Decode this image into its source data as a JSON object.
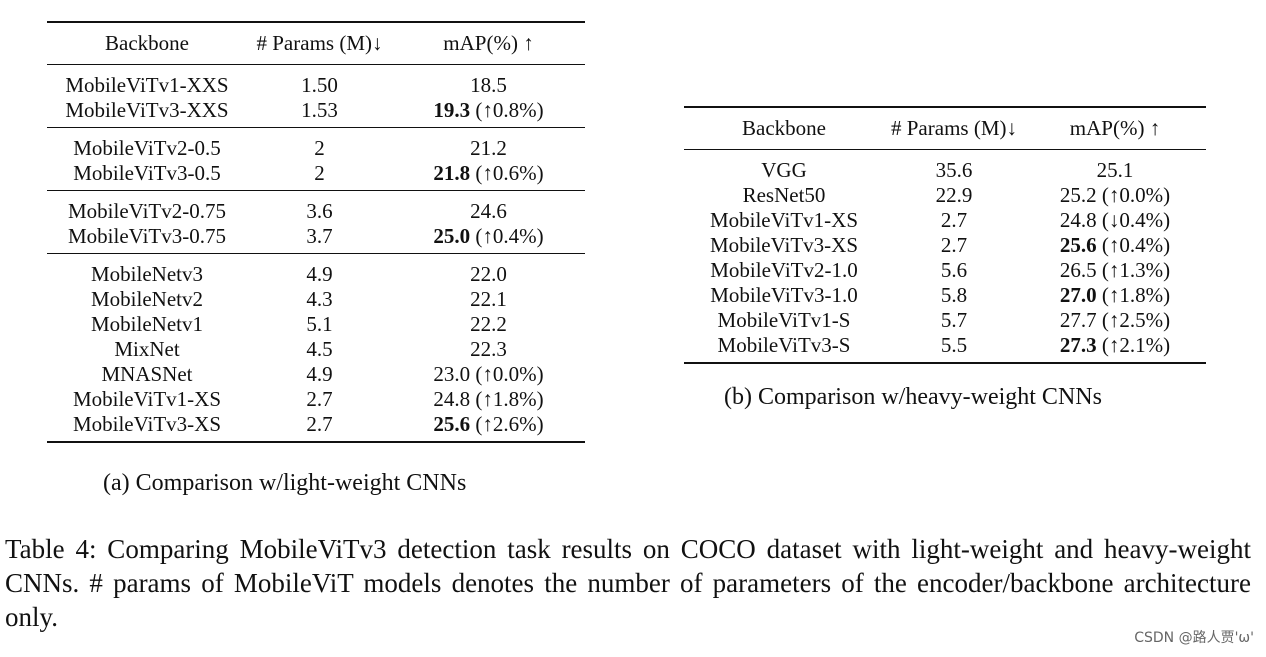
{
  "table_a": {
    "headers": [
      "Backbone",
      "# Params (M)↓",
      "mAP(%) ↑"
    ],
    "groups": [
      [
        {
          "backbone": "MobileViTv1-XXS",
          "params": "1.50",
          "map": "18.5",
          "delta": "",
          "bold": false
        },
        {
          "backbone": "MobileViTv3-XXS",
          "params": "1.53",
          "map": "19.3",
          "delta": " (↑0.8%)",
          "bold": true
        }
      ],
      [
        {
          "backbone": "MobileViTv2-0.5",
          "params": "2",
          "map": "21.2",
          "delta": "",
          "bold": false
        },
        {
          "backbone": "MobileViTv3-0.5",
          "params": "2",
          "map": "21.8",
          "delta": " (↑0.6%)",
          "bold": true
        }
      ],
      [
        {
          "backbone": "MobileViTv2-0.75",
          "params": "3.6",
          "map": "24.6",
          "delta": "",
          "bold": false
        },
        {
          "backbone": "MobileViTv3-0.75",
          "params": "3.7",
          "map": "25.0",
          "delta": " (↑0.4%)",
          "bold": true
        }
      ],
      [
        {
          "backbone": "MobileNetv3",
          "params": "4.9",
          "map": "22.0",
          "delta": "",
          "bold": false
        },
        {
          "backbone": "MobileNetv2",
          "params": "4.3",
          "map": "22.1",
          "delta": "",
          "bold": false
        },
        {
          "backbone": "MobileNetv1",
          "params": "5.1",
          "map": "22.2",
          "delta": "",
          "bold": false
        },
        {
          "backbone": "MixNet",
          "params": "4.5",
          "map": "22.3",
          "delta": "",
          "bold": false
        },
        {
          "backbone": "MNASNet",
          "params": "4.9",
          "map": "23.0",
          "delta": " (↑0.0%)",
          "bold": false
        },
        {
          "backbone": "MobileViTv1-XS",
          "params": "2.7",
          "map": "24.8",
          "delta": " (↑1.8%)",
          "bold": false
        },
        {
          "backbone": "MobileViTv3-XS",
          "params": "2.7",
          "map": "25.6",
          "delta": " (↑2.6%)",
          "bold": true
        }
      ]
    ],
    "caption": "(a) Comparison w/light-weight CNNs"
  },
  "table_b": {
    "headers": [
      "Backbone",
      "# Params (M)↓",
      "mAP(%) ↑"
    ],
    "rows": [
      {
        "backbone": "VGG",
        "params": "35.6",
        "map": "25.1",
        "delta": "",
        "bold": false
      },
      {
        "backbone": "ResNet50",
        "params": "22.9",
        "map": "25.2",
        "delta": " (↑0.0%)",
        "bold": false
      },
      {
        "backbone": "MobileViTv1-XS",
        "params": "2.7",
        "map": "24.8",
        "delta": " (↓0.4%)",
        "bold": false
      },
      {
        "backbone": "MobileViTv3-XS",
        "params": "2.7",
        "map": "25.6",
        "delta": " (↑0.4%)",
        "bold": true
      },
      {
        "backbone": "MobileViTv2-1.0",
        "params": "5.6",
        "map": "26.5",
        "delta": " (↑1.3%)",
        "bold": false
      },
      {
        "backbone": "MobileViTv3-1.0",
        "params": "5.8",
        "map": "27.0",
        "delta": " (↑1.8%)",
        "bold": true
      },
      {
        "backbone": "MobileViTv1-S",
        "params": "5.7",
        "map": "27.7",
        "delta": " (↑2.5%)",
        "bold": false
      },
      {
        "backbone": "MobileViTv3-S",
        "params": "5.5",
        "map": "27.3",
        "delta": " (↑2.1%)",
        "bold": true
      }
    ],
    "caption": "(b) Comparison w/heavy-weight CNNs"
  },
  "main_caption": "Table 4: Comparing MobileViTv3 detection task results on COCO dataset with light-weight and heavy-weight CNNs. # params of MobileViT models denotes the number of parameters of the encoder/backbone architecture only.",
  "watermark": "CSDN @路人贾'ω'"
}
